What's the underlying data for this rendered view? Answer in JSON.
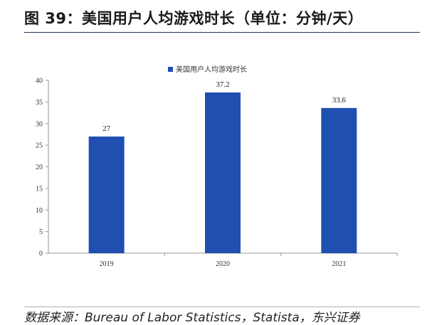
{
  "header": {
    "figure_title": "图 39：美国用户人均游戏时长（单位：分钟/天）"
  },
  "footer": {
    "source": "数据来源：Bureau of Labor Statistics，Statista，东兴证券"
  },
  "colors": {
    "bar": "#1f4fb0",
    "axis": "#999999"
  },
  "chart_data": {
    "type": "bar",
    "title": "",
    "xlabel": "",
    "ylabel": "",
    "categories": [
      "2019",
      "2020",
      "2021"
    ],
    "series": [
      {
        "name": "美国用户人均游戏时长",
        "values": [
          27,
          37.2,
          33.6
        ]
      }
    ],
    "data_labels": [
      "27",
      "37.2",
      "33.6"
    ],
    "y_ticks": [
      "0",
      "5",
      "10",
      "15",
      "20",
      "25",
      "30",
      "35",
      "40"
    ],
    "ylim": [
      0,
      40
    ],
    "grid": false,
    "legend_position": "top-center"
  }
}
